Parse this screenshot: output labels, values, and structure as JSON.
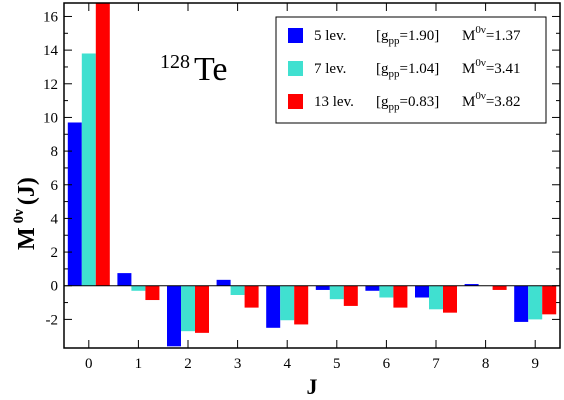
{
  "chart_data": {
    "type": "bar",
    "title": {
      "superscript": "128",
      "text": "Te"
    },
    "xlabel": "J",
    "ylabel": {
      "base": "M",
      "superscript": "0ν",
      "suffix": " (J)"
    },
    "categories": [
      "0",
      "1",
      "2",
      "3",
      "4",
      "5",
      "6",
      "7",
      "8",
      "9"
    ],
    "ylim": [
      -3.7,
      16.8
    ],
    "yticks": [
      -2,
      0,
      2,
      4,
      6,
      8,
      10,
      12,
      14,
      16
    ],
    "ytick_labels": [
      "-2",
      "0",
      "2",
      "4",
      "6",
      "8",
      "10",
      "12",
      "14",
      "16"
    ],
    "series": [
      {
        "name": "5 lev.",
        "gpp": "1.90",
        "m0v": "1.37",
        "color": "#0000ff",
        "values": [
          9.7,
          0.75,
          -3.6,
          0.35,
          -2.5,
          -0.25,
          -0.3,
          -0.7,
          0.1,
          -2.15
        ]
      },
      {
        "name": "7 lev.",
        "gpp": "1.04",
        "m0v": "3.41",
        "color": "#40e0d0",
        "values": [
          13.8,
          -0.3,
          -2.7,
          -0.55,
          -2.05,
          -0.8,
          -0.7,
          -1.4,
          0.0,
          -2.0
        ]
      },
      {
        "name": "13 lev.",
        "gpp": "0.83",
        "m0v": "3.82",
        "color": "#ff0000",
        "values": [
          16.8,
          -0.85,
          -2.8,
          -1.3,
          -2.3,
          -1.2,
          -1.3,
          -1.6,
          -0.25,
          -1.7
        ]
      }
    ],
    "legend": {
      "placement": "top-right",
      "gpp_prefix": "g",
      "gpp_sub": "pp",
      "m_label": "M",
      "m_sup": "0ν"
    },
    "grid": false
  }
}
